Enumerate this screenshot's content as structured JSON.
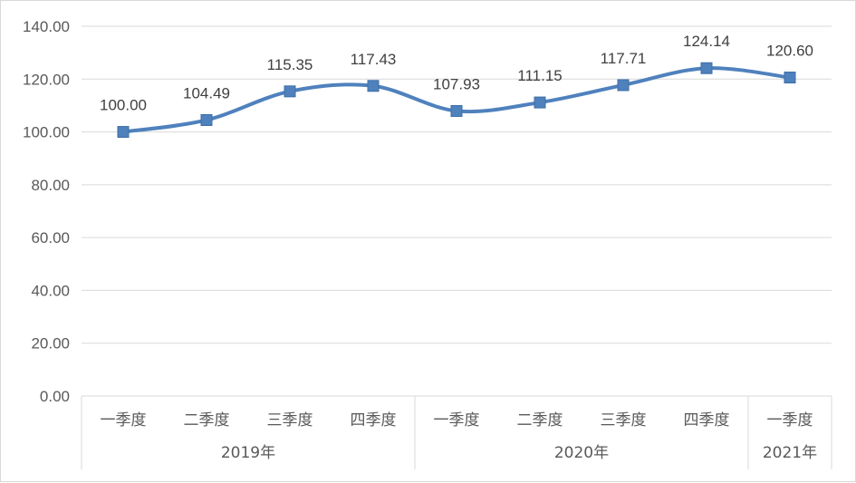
{
  "chart_data": {
    "type": "line",
    "title": "",
    "xlabel": "",
    "ylabel": "",
    "ylim": [
      0,
      140
    ],
    "y_ticks": [
      "0.00",
      "20.00",
      "40.00",
      "60.00",
      "80.00",
      "100.00",
      "120.00",
      "140.00"
    ],
    "categories": [
      "一季度",
      "二季度",
      "三季度",
      "四季度",
      "一季度",
      "二季度",
      "三季度",
      "四季度",
      "一季度"
    ],
    "groups": [
      {
        "label": "2019年",
        "count": 4
      },
      {
        "label": "2020年",
        "count": 4
      },
      {
        "label": "2021年",
        "count": 1
      }
    ],
    "series": [
      {
        "values": [
          100.0,
          104.49,
          115.35,
          117.43,
          107.93,
          111.15,
          117.71,
          124.14,
          120.6
        ],
        "labels": [
          "100.00",
          "104.49",
          "115.35",
          "117.43",
          "107.93",
          "111.15",
          "117.71",
          "124.14",
          "120.60"
        ],
        "color": "#4f81bd",
        "smooth": true,
        "marker": "square"
      }
    ],
    "grid": true,
    "legend": "none"
  }
}
